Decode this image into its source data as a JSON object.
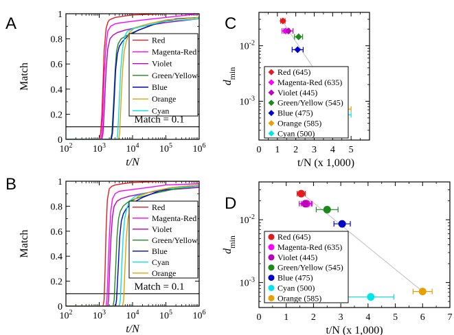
{
  "chart_data": [
    {
      "panel": "A",
      "type": "line",
      "xlabel": "t/N",
      "ylabel": "Match",
      "xscale": "log",
      "xlim": [
        100,
        1000000
      ],
      "ylim": [
        0,
        1
      ],
      "xticks": [
        {
          "v": 100,
          "base": "10",
          "exp": "2"
        },
        {
          "v": 1000,
          "base": "10",
          "exp": "3"
        },
        {
          "v": 10000,
          "base": "10",
          "exp": "4"
        },
        {
          "v": 100000,
          "base": "10",
          "exp": "5"
        },
        {
          "v": 1000000,
          "base": "10",
          "exp": "6"
        }
      ],
      "yticks": [
        {
          "v": 0,
          "label": "0"
        },
        {
          "v": 0.2,
          "label": "0.2"
        },
        {
          "v": 0.4,
          "label": "0.4"
        },
        {
          "v": 0.6,
          "label": "0.6"
        },
        {
          "v": 0.8,
          "label": "0.8"
        },
        {
          "v": 1,
          "label": "1"
        }
      ],
      "hline": {
        "y": 0.1,
        "label": "Match = 0.1"
      },
      "legend": "right",
      "series": [
        {
          "name": "Red",
          "color": "#e41a1c",
          "x": [
            100,
            1000,
            1100,
            1200,
            1300,
            1400,
            1600,
            1800,
            2000,
            2400,
            3000,
            5000,
            10000,
            100000,
            1000000
          ],
          "y": [
            0,
            0,
            0.05,
            0.2,
            0.45,
            0.7,
            0.88,
            0.93,
            0.95,
            0.96,
            0.97,
            0.98,
            0.99,
            1,
            1
          ]
        },
        {
          "name": "Magenta-Red",
          "color": "#ff00ff",
          "x": [
            100,
            1100,
            1200,
            1300,
            1400,
            1600,
            1800,
            2200,
            3000,
            5000,
            20000,
            100000,
            1000000
          ],
          "y": [
            0,
            0,
            0.05,
            0.25,
            0.5,
            0.75,
            0.86,
            0.9,
            0.92,
            0.93,
            0.95,
            0.97,
            1
          ]
        },
        {
          "name": "Violet",
          "color": "#bb00bb",
          "x": [
            100,
            1200,
            1300,
            1450,
            1600,
            1800,
            2100,
            2600,
            3500,
            6000,
            20000,
            100000,
            1000000
          ],
          "y": [
            0,
            0,
            0.05,
            0.3,
            0.55,
            0.72,
            0.8,
            0.83,
            0.85,
            0.87,
            0.9,
            0.93,
            0.96
          ]
        },
        {
          "name": "Green/Yellow",
          "color": "#1a8a1a",
          "x": [
            100,
            2200,
            2400,
            2700,
            3000,
            3300,
            3700,
            4500,
            6000,
            10000,
            30000,
            100000,
            1000000
          ],
          "y": [
            0,
            0,
            0.05,
            0.3,
            0.55,
            0.7,
            0.76,
            0.8,
            0.82,
            0.85,
            0.9,
            0.95,
            0.97
          ]
        },
        {
          "name": "Blue",
          "color": "#0000cc",
          "x": [
            100,
            2300,
            2500,
            2800,
            3100,
            3500,
            4000,
            5000,
            7000,
            15000,
            50000,
            200000,
            1000000
          ],
          "y": [
            0,
            0,
            0.05,
            0.3,
            0.55,
            0.68,
            0.74,
            0.78,
            0.82,
            0.87,
            0.92,
            0.96,
            0.97
          ]
        },
        {
          "name": "Orange",
          "color": "#e6a000",
          "x": [
            100,
            3800,
            4100,
            4500,
            5000,
            5600,
            6500,
            8000,
            12000,
            30000,
            100000,
            1000000
          ],
          "y": [
            0,
            0,
            0.05,
            0.3,
            0.55,
            0.7,
            0.78,
            0.85,
            0.89,
            0.92,
            0.95,
            0.97
          ]
        },
        {
          "name": "Cyan",
          "color": "#00e5e5",
          "x": [
            100,
            3400,
            3600,
            4000,
            4400,
            5000,
            5800,
            7000,
            10000,
            30000,
            100000,
            1000000
          ],
          "y": [
            0,
            0,
            0.05,
            0.3,
            0.55,
            0.72,
            0.82,
            0.86,
            0.88,
            0.91,
            0.94,
            0.96
          ]
        }
      ]
    },
    {
      "panel": "B",
      "type": "line",
      "xlabel": "t/N",
      "ylabel": "Match",
      "xscale": "log",
      "xlim": [
        100,
        1000000
      ],
      "ylim": [
        0,
        1
      ],
      "xticks": [
        {
          "v": 100,
          "base": "10",
          "exp": "2"
        },
        {
          "v": 1000,
          "base": "10",
          "exp": "3"
        },
        {
          "v": 10000,
          "base": "10",
          "exp": "4"
        },
        {
          "v": 100000,
          "base": "10",
          "exp": "5"
        },
        {
          "v": 1000000,
          "base": "10",
          "exp": "6"
        }
      ],
      "yticks": [
        {
          "v": 0,
          "label": "0"
        },
        {
          "v": 0.2,
          "label": "0.2"
        },
        {
          "v": 0.4,
          "label": "0.4"
        },
        {
          "v": 0.6,
          "label": "0.6"
        },
        {
          "v": 0.8,
          "label": "0.8"
        },
        {
          "v": 1,
          "label": "1"
        }
      ],
      "hline": {
        "y": 0.1,
        "label": "Match = 0.1"
      },
      "legend": "right",
      "series": [
        {
          "name": "Red",
          "color": "#e41a1c",
          "x": [
            100,
            1300,
            1400,
            1500,
            1600,
            1750,
            2000,
            2400,
            3000,
            5000,
            10000,
            100000,
            1000000
          ],
          "y": [
            0,
            0,
            0.05,
            0.3,
            0.6,
            0.85,
            0.94,
            0.96,
            0.97,
            0.98,
            0.99,
            1,
            1
          ]
        },
        {
          "name": "Magenta-Red",
          "color": "#ff00ff",
          "x": [
            100,
            1600,
            1700,
            1850,
            2000,
            2200,
            2500,
            3000,
            4000,
            8000,
            30000,
            100000,
            1000000
          ],
          "y": [
            0,
            0,
            0.05,
            0.3,
            0.55,
            0.75,
            0.86,
            0.9,
            0.92,
            0.93,
            0.95,
            0.97,
            0.98
          ]
        },
        {
          "name": "Violet",
          "color": "#bb00bb",
          "x": [
            100,
            1800,
            1900,
            2050,
            2250,
            2500,
            2800,
            3400,
            4500,
            8000,
            30000,
            100000,
            1000000
          ],
          "y": [
            0,
            0,
            0.05,
            0.3,
            0.55,
            0.72,
            0.8,
            0.84,
            0.86,
            0.88,
            0.91,
            0.93,
            0.95
          ]
        },
        {
          "name": "Green/Yellow",
          "color": "#1a8a1a",
          "x": [
            100,
            2600,
            2800,
            3100,
            3400,
            3800,
            4300,
            5200,
            7000,
            12000,
            40000,
            200000,
            1000000
          ],
          "y": [
            0,
            0,
            0.05,
            0.3,
            0.55,
            0.7,
            0.76,
            0.8,
            0.83,
            0.86,
            0.9,
            0.94,
            0.96
          ]
        },
        {
          "name": "Blue",
          "color": "#0000cc",
          "x": [
            100,
            3100,
            3300,
            3700,
            4100,
            4600,
            5300,
            6500,
            9000,
            20000,
            60000,
            200000,
            1000000
          ],
          "y": [
            0,
            0,
            0.05,
            0.3,
            0.55,
            0.68,
            0.74,
            0.78,
            0.82,
            0.87,
            0.92,
            0.95,
            0.96
          ]
        },
        {
          "name": "Cyan",
          "color": "#00e5e5",
          "x": [
            100,
            4000,
            4300,
            4700,
            5200,
            5800,
            6700,
            8000,
            12000,
            30000,
            100000,
            1000000
          ],
          "y": [
            0,
            0,
            0.05,
            0.3,
            0.55,
            0.7,
            0.78,
            0.84,
            0.88,
            0.91,
            0.94,
            0.96
          ]
        },
        {
          "name": "Orange",
          "color": "#e6a000",
          "x": [
            100,
            5000,
            5400,
            5900,
            6500,
            7300,
            8500,
            10000,
            15000,
            40000,
            150000,
            1000000
          ],
          "y": [
            0,
            0,
            0.05,
            0.3,
            0.55,
            0.7,
            0.78,
            0.84,
            0.88,
            0.92,
            0.95,
            0.97
          ]
        }
      ]
    },
    {
      "panel": "C",
      "type": "scatter",
      "xlabel": "t/N (x 1,000)",
      "ylabel_main": "d",
      "ylabel_sub": "min",
      "yscale": "log",
      "xlim": [
        0,
        6
      ],
      "ylim": [
        0.0002,
        0.04
      ],
      "xticks": [
        {
          "v": 0,
          "label": "0"
        },
        {
          "v": 1,
          "label": "1"
        },
        {
          "v": 2,
          "label": "2"
        },
        {
          "v": 3,
          "label": "3"
        },
        {
          "v": 4,
          "label": "4"
        },
        {
          "v": 5,
          "label": "5"
        }
      ],
      "yticks": [
        {
          "v": 0.01,
          "base": "10",
          "exp": "-2"
        },
        {
          "v": 0.001,
          "base": "10",
          "exp": "-3"
        }
      ],
      "fit_line": {
        "x": [
          1.2,
          4.6
        ],
        "y": [
          0.03,
          0.0006
        ]
      },
      "marker": "diamond",
      "legend": "left",
      "points": [
        {
          "name": "Red (645)",
          "color": "#e41a1c",
          "x": 1.3,
          "xerr": 0.12,
          "y": 0.028
        },
        {
          "name": "Magenta-Red (635)",
          "color": "#ff00ff",
          "x": 1.45,
          "xerr": 0.2,
          "y": 0.0185
        },
        {
          "name": "Violet (445)",
          "color": "#bb00bb",
          "x": 1.6,
          "xerr": 0.25,
          "y": 0.0185
        },
        {
          "name": "Green/Yellow (545)",
          "color": "#1a8a1a",
          "x": 2.15,
          "xerr": 0.22,
          "y": 0.0145
        },
        {
          "name": "Blue (475)",
          "color": "#0000cc",
          "x": 2.1,
          "xerr": 0.3,
          "y": 0.0085
        },
        {
          "name": "Orange (585)",
          "color": "#e6a000",
          "x": 4.1,
          "xerr": 0.9,
          "y": 0.00072
        },
        {
          "name": "Cyan (500)",
          "color": "#00e5e5",
          "x": 4.5,
          "xerr": 0.5,
          "y": 0.00057
        }
      ]
    },
    {
      "panel": "D",
      "type": "scatter",
      "xlabel": "t/N (x 1,000)",
      "ylabel_main": "d",
      "ylabel_sub": "min",
      "yscale": "log",
      "xlim": [
        0,
        7
      ],
      "ylim": [
        0.0004,
        0.04
      ],
      "xticks": [
        {
          "v": 0,
          "label": "0"
        },
        {
          "v": 1,
          "label": "1"
        },
        {
          "v": 2,
          "label": "2"
        },
        {
          "v": 3,
          "label": "3"
        },
        {
          "v": 4,
          "label": "4"
        },
        {
          "v": 5,
          "label": "5"
        },
        {
          "v": 6,
          "label": "6"
        },
        {
          "v": 7,
          "label": "7"
        }
      ],
      "yticks": [
        {
          "v": 0.01,
          "base": "10",
          "exp": "-2"
        },
        {
          "v": 0.001,
          "base": "10",
          "exp": "-3"
        }
      ],
      "fit_line": {
        "x": [
          1.5,
          6.0
        ],
        "y": [
          0.028,
          0.00072
        ]
      },
      "marker": "circle",
      "legend": "left",
      "points": [
        {
          "name": "Red (645)",
          "color": "#e41a1c",
          "x": 1.55,
          "xerr": 0.15,
          "y": 0.026
        },
        {
          "name": "Magenta-Red (635)",
          "color": "#ff00ff",
          "x": 1.75,
          "xerr": 0.2,
          "y": 0.018
        },
        {
          "name": "Violet (445)",
          "color": "#bb00bb",
          "x": 1.7,
          "xerr": 0.22,
          "y": 0.018
        },
        {
          "name": "Green/Yellow (545)",
          "color": "#1a8a1a",
          "x": 2.5,
          "xerr": 0.4,
          "y": 0.0145
        },
        {
          "name": "Blue (475)",
          "color": "#0000cc",
          "x": 3.05,
          "xerr": 0.3,
          "y": 0.0086
        },
        {
          "name": "Cyan (500)",
          "color": "#00e5e5",
          "x": 4.1,
          "xerr": 0.85,
          "y": 0.00059
        },
        {
          "name": "Orange (585)",
          "color": "#e6a000",
          "x": 6.0,
          "xerr": 0.35,
          "y": 0.00072
        }
      ]
    }
  ]
}
